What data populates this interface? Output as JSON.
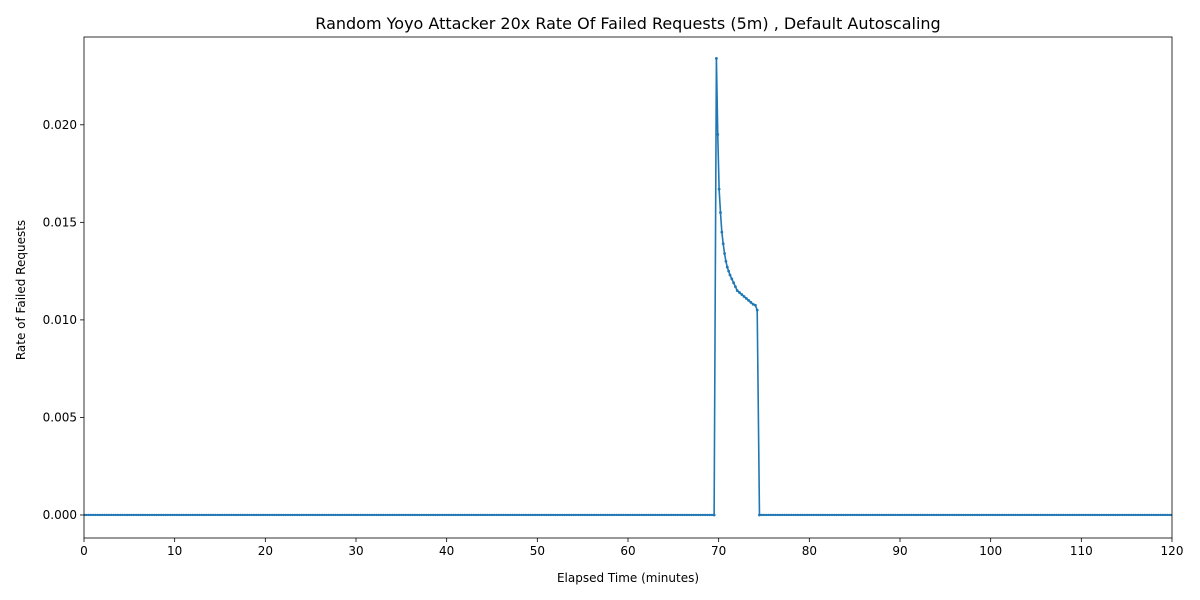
{
  "chart_data": {
    "type": "line",
    "title": "Random Yoyo Attacker 20x Rate Of Failed Requests (5m) , Default Autoscaling",
    "xlabel": "Elapsed Time (minutes)",
    "ylabel": "Rate of Failed Requests",
    "xlim": [
      0,
      120
    ],
    "ylim": [
      -0.00118,
      0.0245
    ],
    "x_ticks": [
      0,
      10,
      20,
      30,
      40,
      50,
      60,
      70,
      80,
      90,
      100,
      110,
      120
    ],
    "x_tick_labels": [
      "0",
      "10",
      "20",
      "30",
      "40",
      "50",
      "60",
      "70",
      "80",
      "90",
      "100",
      "110",
      "120"
    ],
    "y_ticks": [
      0.0,
      0.005,
      0.01,
      0.015,
      0.02
    ],
    "y_tick_labels": [
      "0.000",
      "0.005",
      "0.010",
      "0.015",
      "0.020"
    ],
    "grid": false,
    "legend": "none",
    "color": "#1f77b4",
    "series": [
      {
        "x": [
          0,
          69.5,
          69.75,
          69.9,
          70.05,
          70.2,
          70.35,
          70.5,
          70.65,
          70.8,
          70.95,
          71.1,
          71.25,
          71.45,
          71.65,
          71.85,
          72.05,
          72.3,
          72.55,
          72.8,
          73.05,
          73.3,
          73.55,
          73.8,
          74.05,
          74.25,
          74.5,
          120
        ],
        "y": [
          0,
          0,
          0.0234,
          0.0195,
          0.0167,
          0.0155,
          0.0145,
          0.0139,
          0.0134,
          0.013,
          0.0127,
          0.0125,
          0.0123,
          0.0121,
          0.0119,
          0.0117,
          0.0115,
          0.0114,
          0.0113,
          0.0112,
          0.0111,
          0.011,
          0.0109,
          0.0108,
          0.01075,
          0.0105,
          0,
          0
        ]
      }
    ]
  }
}
